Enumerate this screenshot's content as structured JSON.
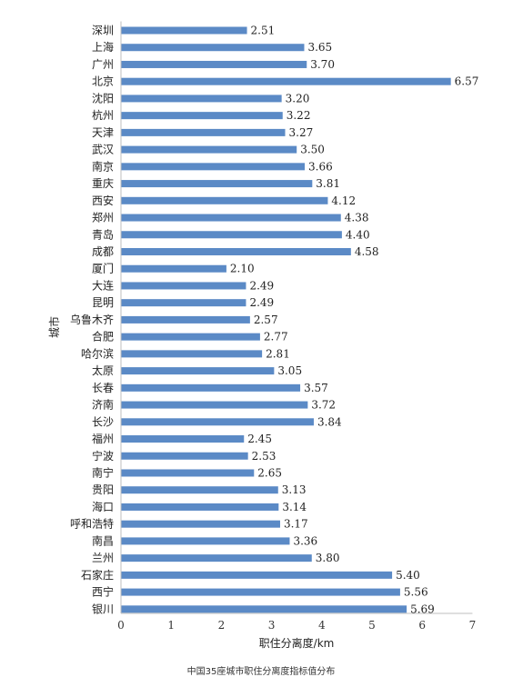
{
  "chart_data": {
    "type": "bar",
    "orientation": "horizontal",
    "categories": [
      "深圳",
      "上海",
      "广州",
      "北京",
      "沈阳",
      "杭州",
      "天津",
      "武汉",
      "南京",
      "重庆",
      "西安",
      "郑州",
      "青岛",
      "成都",
      "厦门",
      "大连",
      "昆明",
      "乌鲁木齐",
      "合肥",
      "哈尔滨",
      "太原",
      "长春",
      "济南",
      "长沙",
      "福州",
      "宁波",
      "南宁",
      "贵阳",
      "海口",
      "呼和浩特",
      "南昌",
      "兰州",
      "石家庄",
      "西宁",
      "银川"
    ],
    "values": [
      2.51,
      3.65,
      3.7,
      6.57,
      3.2,
      3.22,
      3.27,
      3.5,
      3.66,
      3.81,
      4.12,
      4.38,
      4.4,
      4.58,
      2.1,
      2.49,
      2.49,
      2.57,
      2.77,
      2.81,
      3.05,
      3.57,
      3.72,
      3.84,
      2.45,
      2.53,
      2.65,
      3.13,
      3.14,
      3.17,
      3.36,
      3.8,
      5.4,
      5.56,
      5.69
    ],
    "value_labels": [
      "2.51",
      "3.65",
      "3.70",
      "6.57",
      "3.20",
      "3.22",
      "3.27",
      "3.50",
      "3.66",
      "3.81",
      "4.12",
      "4.38",
      "4.40",
      "4.58",
      "2.10",
      "2.49",
      "2.49",
      "2.57",
      "2.77",
      "2.81",
      "3.05",
      "3.57",
      "3.72",
      "3.84",
      "2.45",
      "2.53",
      "2.65",
      "3.13",
      "3.14",
      "3.17",
      "3.36",
      "3.80",
      "5.40",
      "5.56",
      "5.69"
    ],
    "xlabel": "职住分离度/km",
    "ylabel": "城市",
    "xlim": [
      0,
      7
    ],
    "xticks": [
      "0",
      "1",
      "2",
      "3",
      "4",
      "5",
      "6",
      "7"
    ],
    "grid": false,
    "bar_color": "#5b8ac6",
    "caption": "中国35座城市职住分离度指标值分布"
  }
}
